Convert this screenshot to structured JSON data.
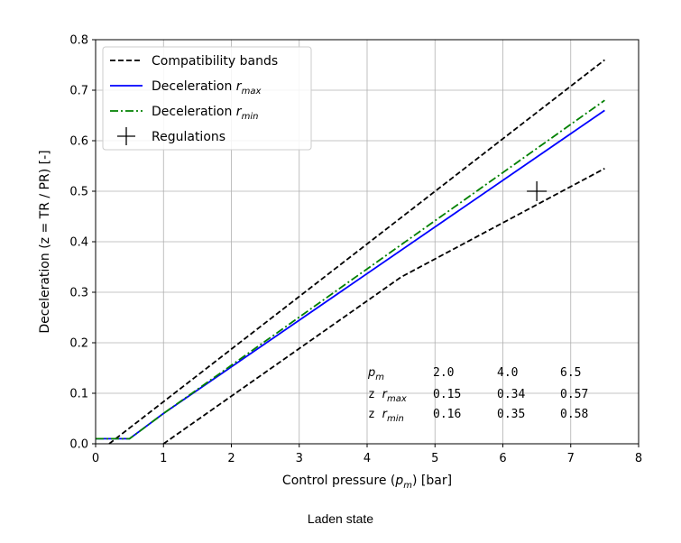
{
  "chart_data": {
    "type": "line",
    "xlabel": {
      "prefix": "Control pressure (",
      "var": "p",
      "sub": "m",
      "suffix": ") [bar]"
    },
    "ylabel": "Deceleration (z = TR / PR) [-]",
    "xlim": [
      0,
      8
    ],
    "ylim": [
      0,
      0.8
    ],
    "xticks": [
      "0",
      "1",
      "2",
      "3",
      "4",
      "5",
      "6",
      "7",
      "8"
    ],
    "yticks": [
      "0.0",
      "0.1",
      "0.2",
      "0.3",
      "0.4",
      "0.5",
      "0.6",
      "0.7",
      "0.8"
    ],
    "grid": true,
    "legend_position": "top-left",
    "series": [
      {
        "name": "Compatibility bands",
        "style": "dashed",
        "color": "#000000",
        "segments": [
          {
            "x": [
              0.2,
              7.5
            ],
            "y": [
              0.0,
              0.76
            ]
          },
          {
            "x": [
              1.0,
              4.5,
              7.5
            ],
            "y": [
              0.0,
              0.33,
              0.545
            ]
          }
        ]
      },
      {
        "name": "Deceleration",
        "name_sub": "max",
        "style": "solid",
        "color": "#0000ff",
        "x": [
          0,
          0.5,
          1.0,
          7.5
        ],
        "y": [
          0.01,
          0.01,
          0.06,
          0.66
        ]
      },
      {
        "name": "Deceleration",
        "name_sub": "min",
        "style": "dashdot",
        "color": "#008000",
        "x": [
          0,
          0.5,
          1.0,
          7.5
        ],
        "y": [
          0.01,
          0.01,
          0.06,
          0.68
        ]
      },
      {
        "name": "Regulations",
        "style": "marker-plus",
        "color": "#000000",
        "x": [
          6.5
        ],
        "y": [
          0.5
        ]
      }
    ],
    "annotation_table": {
      "header_var": "p",
      "header_sub": "m",
      "columns": [
        "2.0",
        "4.0",
        "6.5"
      ],
      "rows": [
        {
          "prefix": "z ",
          "var": "r",
          "sub": "max",
          "values": [
            "0.15",
            "0.34",
            "0.57"
          ]
        },
        {
          "prefix": "z ",
          "var": "r",
          "sub": "min",
          "values": [
            "0.16",
            "0.35",
            "0.58"
          ]
        }
      ]
    }
  },
  "caption": "Laden state"
}
